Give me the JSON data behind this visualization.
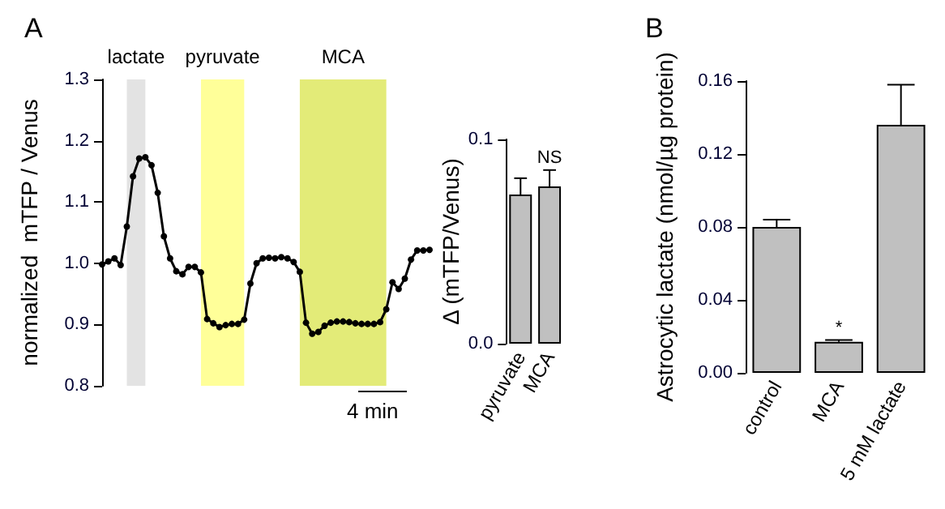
{
  "chart_data": [
    {
      "type": "line",
      "title": "A",
      "ylabel": "normalized  mTFP / Venus",
      "ylim": [
        0.8,
        1.3
      ],
      "yticks": [
        0.8,
        0.9,
        {
          "value": 1,
          "label": "1.0"
        },
        1.1,
        1.2,
        1.3
      ],
      "tick_labels": "y",
      "marker": "circle",
      "line_style": "solid",
      "categories": [
        null,
        null,
        null,
        null,
        null,
        null,
        null,
        null,
        null,
        null,
        null,
        null,
        null,
        null,
        null,
        null,
        null,
        null,
        null,
        null,
        null,
        null,
        null,
        null,
        null,
        null,
        null,
        null,
        null,
        null,
        null,
        null,
        null,
        null,
        null,
        null,
        null,
        null,
        null,
        null,
        null,
        null,
        null,
        null,
        null,
        null,
        null,
        null,
        null,
        null,
        null,
        null,
        null,
        null
      ],
      "series": [
        {
          "color": "#000000",
          "values": [
            0.998,
            1.003,
            1.008,
            0.997,
            1.06,
            1.142,
            1.171,
            1.173,
            1.16,
            1.115,
            1.044,
            1.008,
            0.987,
            0.982,
            0.994,
            0.994,
            0.985,
            0.909,
            0.902,
            0.896,
            0.899,
            0.901,
            0.901,
            0.908,
            0.967,
            1.0,
            1.008,
            1.009,
            1.008,
            1.01,
            1.008,
            1.002,
            0.986,
            0.903,
            0.885,
            0.888,
            0.898,
            0.903,
            0.905,
            0.905,
            0.904,
            0.902,
            0.901,
            0.901,
            0.901,
            0.904,
            0.925,
            0.969,
            0.958,
            0.975,
            1.006,
            1.021,
            1.021,
            1.022
          ]
        }
      ],
      "annotations": [
        "lactate",
        "pyruvate",
        "MCA",
        "4 min"
      ]
    },
    {
      "type": "bar",
      "ylabel": "Δ (mTFP/Venus)",
      "categories": [
        "pyruvate",
        "MCA"
      ],
      "ylim": [
        0,
        0.1
      ],
      "yticks": [
        {
          "value": 0,
          "label": "0.0"
        },
        {
          "value": 0.1,
          "label": "0.1"
        }
      ],
      "series": [
        {
          "color": "#c0c0c0",
          "values": [
            0.073,
            0.077
          ],
          "errors": [
            [
              0.073,
              0.081
            ],
            [
              0.077,
              0.085
            ]
          ]
        }
      ],
      "annotations": [
        {
          "text": "NS",
          "x": "MCA",
          "y": 0.085
        }
      ]
    },
    {
      "type": "bar",
      "title": "B",
      "ylabel": "Astrocytic lactate (nmol/µg protein)",
      "categories": [
        "control",
        "MCA",
        "5 mM lactate"
      ],
      "ylim": [
        0,
        0.16
      ],
      "yticks": [
        {
          "value": 0,
          "label": "0.00"
        },
        {
          "value": 0.04,
          "label": "0.04"
        },
        {
          "value": 0.08,
          "label": "0.08"
        },
        {
          "value": 0.12,
          "label": "0.12"
        },
        {
          "value": 0.16,
          "label": "0.16"
        }
      ],
      "series": [
        {
          "color": "#c0c0c0",
          "values": [
            0.08,
            0.017,
            0.136
          ],
          "errors": [
            [
              0.08,
              0.084
            ],
            [
              0.017,
              0.018
            ],
            [
              0.136,
              0.158
            ]
          ]
        }
      ],
      "annotations": [
        {
          "text": "*",
          "x": "MCA",
          "y": 0.018
        }
      ]
    }
  ]
}
